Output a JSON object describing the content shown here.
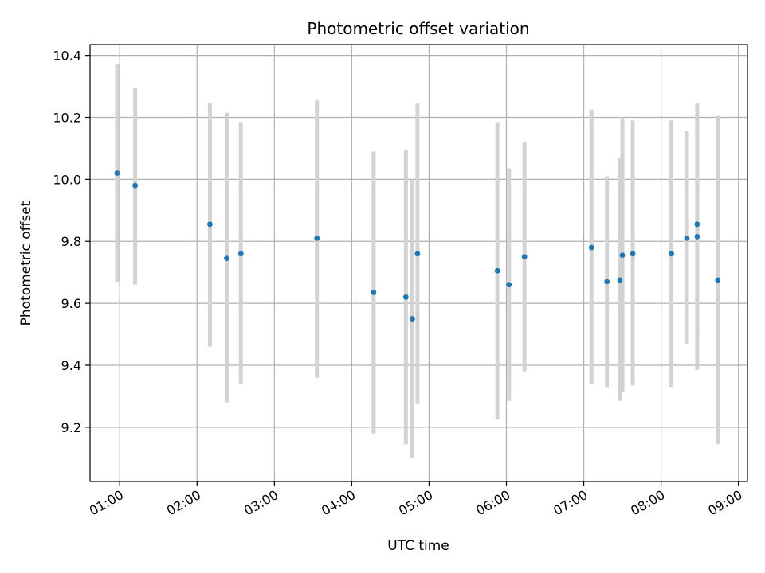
{
  "chart_data": {
    "type": "scatter",
    "title": "Photometric offset variation",
    "xlabel": "UTC time",
    "ylabel": "Photometric offset",
    "x_ticks": [
      "01:00",
      "02:00",
      "03:00",
      "04:00",
      "05:00",
      "06:00",
      "07:00",
      "08:00",
      "09:00"
    ],
    "y_ticks": [
      "9.2",
      "9.4",
      "9.6",
      "9.8",
      "10.0",
      "10.2",
      "10.4"
    ],
    "xlim": [
      "00:37",
      "09:07"
    ],
    "ylim": [
      9.025,
      10.435
    ],
    "grid": true,
    "colors": {
      "point": "#1f77b4",
      "errorbar": "#d3d3d3",
      "grid": "#b0b0b0"
    },
    "series": [
      {
        "points": [
          {
            "x": "00:58",
            "y": 10.02,
            "ylow": 9.67,
            "yhigh": 10.37
          },
          {
            "x": "01:12",
            "y": 9.98,
            "ylow": 9.66,
            "yhigh": 10.295
          },
          {
            "x": "02:10",
            "y": 9.855,
            "ylow": 9.46,
            "yhigh": 10.245
          },
          {
            "x": "02:23",
            "y": 9.745,
            "ylow": 9.28,
            "yhigh": 10.215
          },
          {
            "x": "02:34",
            "y": 9.76,
            "ylow": 9.34,
            "yhigh": 10.185
          },
          {
            "x": "03:33",
            "y": 9.81,
            "ylow": 9.36,
            "yhigh": 10.255
          },
          {
            "x": "04:17",
            "y": 9.635,
            "ylow": 9.18,
            "yhigh": 10.09
          },
          {
            "x": "04:42",
            "y": 9.62,
            "ylow": 9.145,
            "yhigh": 10.095
          },
          {
            "x": "04:47",
            "y": 9.55,
            "ylow": 9.1,
            "yhigh": 10.0
          },
          {
            "x": "04:51",
            "y": 9.76,
            "ylow": 9.275,
            "yhigh": 10.245
          },
          {
            "x": "05:53",
            "y": 9.705,
            "ylow": 9.225,
            "yhigh": 10.185
          },
          {
            "x": "06:02",
            "y": 9.66,
            "ylow": 9.285,
            "yhigh": 10.035
          },
          {
            "x": "06:14",
            "y": 9.75,
            "ylow": 9.38,
            "yhigh": 10.12
          },
          {
            "x": "07:06",
            "y": 9.78,
            "ylow": 9.34,
            "yhigh": 10.225
          },
          {
            "x": "07:18",
            "y": 9.67,
            "ylow": 9.33,
            "yhigh": 10.01
          },
          {
            "x": "07:28",
            "y": 9.675,
            "ylow": 9.285,
            "yhigh": 10.07
          },
          {
            "x": "07:30",
            "y": 9.755,
            "ylow": 9.315,
            "yhigh": 10.2
          },
          {
            "x": "07:38",
            "y": 9.76,
            "ylow": 9.335,
            "yhigh": 10.19
          },
          {
            "x": "08:08",
            "y": 9.76,
            "ylow": 9.33,
            "yhigh": 10.19
          },
          {
            "x": "08:20",
            "y": 9.81,
            "ylow": 9.47,
            "yhigh": 10.155
          },
          {
            "x": "08:28",
            "y": 9.815,
            "ylow": 9.385,
            "yhigh": 10.245
          },
          {
            "x": "08:28",
            "y": 9.855,
            "ylow": 9.5,
            "yhigh": 10.205
          },
          {
            "x": "08:44",
            "y": 9.675,
            "ylow": 9.145,
            "yhigh": 10.205
          }
        ]
      }
    ]
  }
}
